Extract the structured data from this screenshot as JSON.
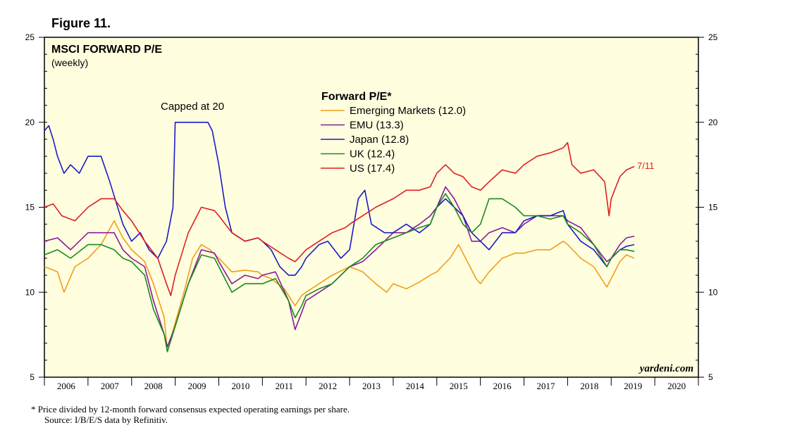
{
  "figure_label": "Figure 11.",
  "footnote": {
    "note": "*  Price divided by 12-month forward consensus expected operating earnings per share.",
    "source": "Source: I/B/E/S data by Refinitiv."
  },
  "chart_data": {
    "type": "line",
    "title": "MSCI FORWARD P/E",
    "subtitle": "(weekly)",
    "legend_title": "Forward P/E*",
    "legend_position": "top-center",
    "annotation": "Capped at 20",
    "date_label": "7/11",
    "watermark": "yardeni.com",
    "background": "#ffffe0",
    "xlim": [
      2006,
      2021
    ],
    "ylim": [
      5,
      25
    ],
    "yticks": [
      5,
      10,
      15,
      20,
      25
    ],
    "xtick_labels": [
      "2006",
      "2007",
      "2008",
      "2009",
      "2010",
      "2011",
      "2012",
      "2013",
      "2014",
      "2015",
      "2016",
      "2017",
      "2018",
      "2019",
      "2020"
    ],
    "series": [
      {
        "name": "Emerging Markets (12.0)",
        "color": "#f39c1a",
        "x": [
          2006.0,
          2006.3,
          2006.45,
          2006.7,
          2007.0,
          2007.3,
          2007.6,
          2007.8,
          2008.0,
          2008.3,
          2008.5,
          2008.75,
          2008.82,
          2009.0,
          2009.2,
          2009.4,
          2009.6,
          2009.8,
          2010.0,
          2010.3,
          2010.6,
          2010.9,
          2011.0,
          2011.2,
          2011.5,
          2011.75,
          2011.9,
          2012.0,
          2012.3,
          2012.6,
          2013.0,
          2013.3,
          2013.6,
          2013.85,
          2014.0,
          2014.3,
          2014.6,
          2014.85,
          2015.0,
          2015.3,
          2015.5,
          2015.7,
          2015.9,
          2016.0,
          2016.2,
          2016.5,
          2016.8,
          2017.0,
          2017.3,
          2017.6,
          2017.9,
          2018.0,
          2018.3,
          2018.6,
          2018.9,
          2019.0,
          2019.2,
          2019.35,
          2019.53
        ],
        "y": [
          11.5,
          11.2,
          10,
          11.5,
          12.0,
          12.8,
          14.2,
          13.2,
          12.5,
          11.8,
          10.5,
          8.5,
          6.5,
          8.2,
          10.0,
          12.0,
          12.8,
          12.5,
          12.0,
          11.2,
          11.3,
          11.2,
          11.0,
          10.8,
          10.2,
          9.2,
          9.8,
          10.0,
          10.5,
          11.0,
          11.5,
          11.2,
          10.5,
          10.0,
          10.5,
          10.2,
          10.6,
          11.0,
          11.2,
          12.0,
          12.8,
          11.8,
          10.8,
          10.5,
          11.2,
          12.0,
          12.3,
          12.3,
          12.5,
          12.5,
          13.0,
          12.8,
          12.0,
          11.5,
          10.3,
          10.8,
          11.8,
          12.2,
          12.0
        ]
      },
      {
        "name": "EMU (13.3)",
        "color": "#8a1a9b",
        "x": [
          2006.0,
          2006.3,
          2006.6,
          2007.0,
          2007.3,
          2007.6,
          2007.8,
          2008.0,
          2008.3,
          2008.5,
          2008.75,
          2008.82,
          2009.0,
          2009.3,
          2009.6,
          2009.9,
          2010.0,
          2010.3,
          2010.6,
          2010.9,
          2011.0,
          2011.3,
          2011.6,
          2011.75,
          2011.9,
          2012.0,
          2012.3,
          2012.6,
          2013.0,
          2013.3,
          2013.6,
          2014.0,
          2014.3,
          2014.6,
          2014.85,
          2015.0,
          2015.2,
          2015.4,
          2015.6,
          2015.8,
          2016.0,
          2016.2,
          2016.5,
          2016.8,
          2017.0,
          2017.3,
          2017.6,
          2017.9,
          2018.0,
          2018.3,
          2018.6,
          2018.9,
          2019.0,
          2019.2,
          2019.35,
          2019.53
        ],
        "y": [
          13.0,
          13.2,
          12.5,
          13.5,
          13.5,
          13.5,
          12.5,
          12.0,
          11.5,
          9.5,
          7.5,
          6.8,
          8.0,
          10.5,
          12.5,
          12.3,
          11.8,
          10.5,
          11.0,
          10.8,
          11.0,
          11.2,
          9.5,
          7.8,
          8.8,
          9.5,
          10.0,
          10.5,
          11.5,
          11.8,
          12.5,
          13.5,
          13.5,
          14.0,
          14.5,
          15.0,
          16.2,
          15.5,
          14.5,
          13.0,
          13.0,
          13.5,
          13.8,
          13.5,
          14.0,
          14.5,
          14.5,
          14.5,
          14.2,
          13.8,
          12.8,
          11.8,
          12.0,
          12.8,
          13.2,
          13.3
        ]
      },
      {
        "name": "Japan (12.8)",
        "color": "#1a1ac8",
        "x": [
          2006.0,
          2006.1,
          2006.2,
          2006.3,
          2006.45,
          2006.6,
          2006.8,
          2007.0,
          2007.3,
          2007.5,
          2007.8,
          2008.0,
          2008.2,
          2008.4,
          2008.6,
          2008.8,
          2008.95,
          2009.0,
          2009.3,
          2009.6,
          2009.75,
          2009.85,
          2010.0,
          2010.15,
          2010.3,
          2010.6,
          2010.9,
          2011.0,
          2011.2,
          2011.4,
          2011.6,
          2011.75,
          2011.9,
          2012.0,
          2012.3,
          2012.5,
          2012.8,
          2013.0,
          2013.2,
          2013.35,
          2013.5,
          2013.8,
          2014.0,
          2014.3,
          2014.6,
          2014.85,
          2015.0,
          2015.2,
          2015.4,
          2015.6,
          2015.8,
          2016.0,
          2016.2,
          2016.5,
          2016.8,
          2017.0,
          2017.3,
          2017.6,
          2017.9,
          2018.0,
          2018.3,
          2018.6,
          2018.9,
          2019.0,
          2019.2,
          2019.35,
          2019.53
        ],
        "y": [
          19.5,
          19.8,
          19.0,
          18.0,
          17.0,
          17.5,
          17.0,
          18.0,
          18.0,
          16.5,
          14.0,
          13.0,
          13.5,
          12.5,
          12.0,
          13.0,
          15.0,
          20.0,
          20.0,
          20.0,
          20.0,
          19.5,
          17.5,
          15.0,
          13.5,
          13.0,
          13.2,
          13.0,
          12.5,
          11.5,
          11.0,
          11.0,
          11.5,
          12.0,
          12.8,
          13.0,
          12.0,
          12.5,
          15.5,
          16.0,
          14.0,
          13.5,
          13.5,
          14.0,
          13.5,
          14.0,
          15.0,
          15.5,
          15.0,
          14.5,
          13.5,
          13.0,
          12.5,
          13.5,
          13.5,
          14.2,
          14.5,
          14.5,
          14.8,
          14.0,
          13.0,
          12.5,
          11.5,
          12.0,
          12.5,
          12.7,
          12.8
        ]
      },
      {
        "name": "UK (12.4)",
        "color": "#1a8a1a",
        "x": [
          2006.0,
          2006.3,
          2006.6,
          2007.0,
          2007.3,
          2007.6,
          2007.8,
          2008.0,
          2008.3,
          2008.5,
          2008.75,
          2008.82,
          2009.0,
          2009.3,
          2009.6,
          2009.9,
          2010.0,
          2010.3,
          2010.6,
          2010.9,
          2011.0,
          2011.3,
          2011.6,
          2011.75,
          2011.9,
          2012.0,
          2012.3,
          2012.6,
          2013.0,
          2013.3,
          2013.6,
          2014.0,
          2014.3,
          2014.6,
          2014.85,
          2015.0,
          2015.2,
          2015.4,
          2015.6,
          2015.8,
          2016.0,
          2016.2,
          2016.5,
          2016.8,
          2017.0,
          2017.3,
          2017.6,
          2017.9,
          2018.0,
          2018.3,
          2018.6,
          2018.9,
          2019.0,
          2019.2,
          2019.35,
          2019.53
        ],
        "y": [
          12.2,
          12.5,
          12.0,
          12.8,
          12.8,
          12.5,
          12.0,
          11.8,
          11.0,
          9.0,
          7.5,
          6.5,
          8.0,
          10.5,
          12.2,
          12.0,
          11.5,
          10.0,
          10.5,
          10.5,
          10.5,
          10.8,
          9.5,
          8.5,
          9.2,
          9.8,
          10.2,
          10.5,
          11.5,
          12.0,
          12.8,
          13.2,
          13.5,
          13.8,
          14.0,
          15.0,
          15.8,
          15.0,
          14.0,
          13.5,
          14.0,
          15.5,
          15.5,
          15.0,
          14.5,
          14.5,
          14.3,
          14.5,
          14.0,
          13.5,
          12.8,
          11.5,
          12.0,
          12.5,
          12.5,
          12.4
        ]
      },
      {
        "name": "US (17.4)",
        "color": "#e01e1e",
        "x": [
          2006.0,
          2006.2,
          2006.4,
          2006.7,
          2007.0,
          2007.3,
          2007.6,
          2007.8,
          2008.0,
          2008.3,
          2008.6,
          2008.8,
          2008.9,
          2009.0,
          2009.3,
          2009.6,
          2009.9,
          2010.0,
          2010.3,
          2010.6,
          2010.9,
          2011.0,
          2011.3,
          2011.6,
          2011.75,
          2011.9,
          2012.0,
          2012.3,
          2012.6,
          2012.9,
          2013.0,
          2013.3,
          2013.6,
          2014.0,
          2014.3,
          2014.6,
          2014.85,
          2015.0,
          2015.2,
          2015.4,
          2015.6,
          2015.8,
          2016.0,
          2016.2,
          2016.5,
          2016.8,
          2017.0,
          2017.3,
          2017.6,
          2017.9,
          2018.0,
          2018.1,
          2018.3,
          2018.6,
          2018.85,
          2018.95,
          2019.0,
          2019.2,
          2019.35,
          2019.53
        ],
        "y": [
          15.0,
          15.2,
          14.5,
          14.2,
          15.0,
          15.5,
          15.5,
          14.8,
          14.2,
          13.0,
          12.0,
          10.5,
          9.8,
          11.0,
          13.5,
          15.0,
          14.8,
          14.5,
          13.5,
          13.0,
          13.2,
          13.0,
          12.5,
          12.0,
          11.8,
          12.2,
          12.5,
          13.0,
          13.5,
          13.8,
          14.0,
          14.5,
          15.0,
          15.5,
          16.0,
          16.0,
          16.2,
          17.0,
          17.5,
          17.0,
          16.8,
          16.2,
          16.0,
          16.5,
          17.2,
          17.0,
          17.5,
          18.0,
          18.2,
          18.5,
          18.8,
          17.5,
          17.0,
          17.2,
          16.5,
          14.5,
          15.5,
          16.8,
          17.2,
          17.4
        ]
      }
    ]
  }
}
